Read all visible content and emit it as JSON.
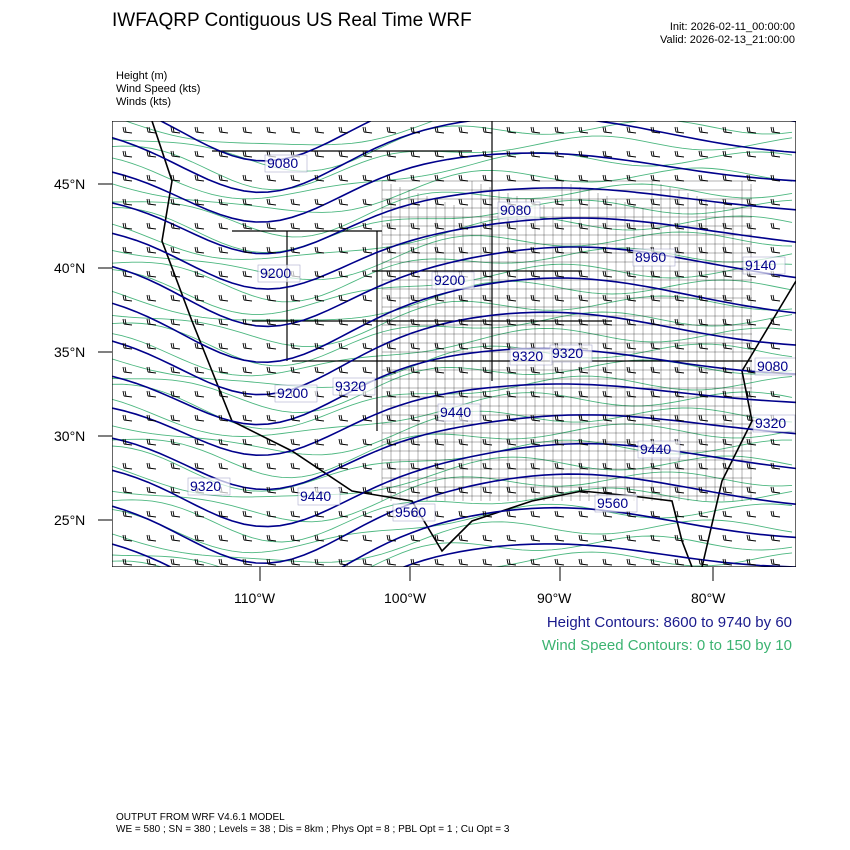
{
  "header": {
    "title": "IWFAQRP Contiguous US Real Time WRF",
    "init": "Init: 2026-02-11_00:00:00",
    "valid": "Valid: 2026-02-13_21:00:00"
  },
  "fields": [
    "Height   (m)",
    "Wind Speed   (kts)",
    "Winds   (kts)"
  ],
  "map": {
    "lat_labels": [
      "45°N",
      "40°N",
      "35°N",
      "30°N",
      "25°N"
    ],
    "lon_labels": [
      "110°W",
      "100°W",
      "90°W",
      "80°W"
    ],
    "height_labels": [
      "9080",
      "9080",
      "8960",
      "9140",
      "9200",
      "9200",
      "9200",
      "9320",
      "9320",
      "9320",
      "9440",
      "9440",
      "9560",
      "9560",
      "9320",
      "9080",
      "9320",
      "9440"
    ],
    "colors": {
      "height": "#00008b",
      "wind_speed": "#2eaa6a",
      "borders": "#000000",
      "barbs": "#000000"
    }
  },
  "legend": {
    "height": "Height Contours: 8600 to 9740 by 60",
    "wind": "Wind Speed Contours: 0 to 150 by 10",
    "height_color": "#1a1a8c",
    "wind_color": "#3cb371"
  },
  "footer": {
    "line1": "OUTPUT FROM WRF V4.6.1 MODEL",
    "line2": "WE = 580 ; SN = 380 ; Levels = 38 ; Dis = 8km ; Phys Opt = 8 ; PBL Opt = 1 ; Cu Opt = 3"
  }
}
